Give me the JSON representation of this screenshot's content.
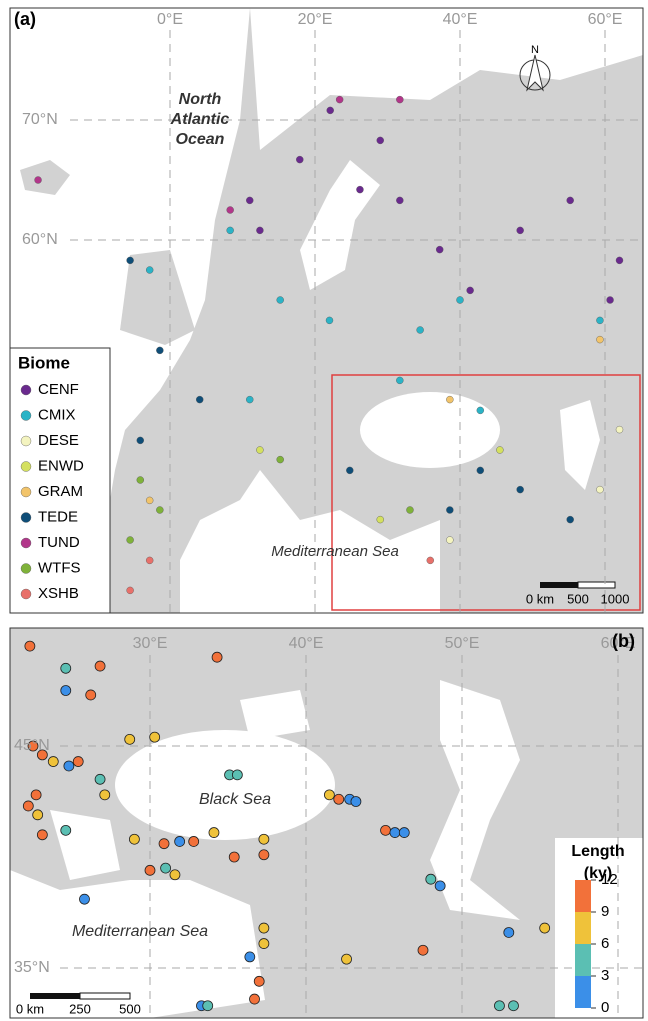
{
  "panel_a": {
    "label": "(a)",
    "lon_ticks": [
      {
        "value": 0,
        "label": "0°E"
      },
      {
        "value": 20,
        "label": "20°E"
      },
      {
        "value": 40,
        "label": "40°E"
      },
      {
        "value": 60,
        "label": "60°E"
      }
    ],
    "lat_ticks": [
      {
        "value": 70,
        "label": "70°N"
      },
      {
        "value": 60,
        "label": "60°N"
      }
    ],
    "ocean_label": [
      "North",
      "Atlantic",
      "Ocean"
    ],
    "sea_label": "Mediterranean Sea",
    "north": "N",
    "scale_labels": [
      "0 km",
      "500",
      "1000"
    ],
    "legend_title": "Biome",
    "biomes": [
      {
        "name": "CENF",
        "color": "#6a2a8e"
      },
      {
        "name": "CMIX",
        "color": "#2bb3c6"
      },
      {
        "name": "DESE",
        "color": "#f4f4c0"
      },
      {
        "name": "ENWD",
        "color": "#d4e060"
      },
      {
        "name": "GRAM",
        "color": "#f2c46a"
      },
      {
        "name": "TEDE",
        "color": "#0f4e78"
      },
      {
        "name": "TUND",
        "color": "#b2368a"
      },
      {
        "name": "WTFS",
        "color": "#7fb23a"
      },
      {
        "name": "XSHB",
        "color": "#e8706a"
      }
    ],
    "sites": [
      [
        22.1,
        70.8,
        "CENF"
      ],
      [
        29,
        68.3,
        "CENF"
      ],
      [
        31.7,
        63.3,
        "CENF"
      ],
      [
        26.2,
        64.2,
        "CENF"
      ],
      [
        11,
        63.3,
        "CENF"
      ],
      [
        12.4,
        60.8,
        "CENF"
      ],
      [
        37.2,
        59.2,
        "CENF"
      ],
      [
        41.4,
        55.8,
        "CENF"
      ],
      [
        62,
        58.3,
        "CENF"
      ],
      [
        60.7,
        55,
        "CENF"
      ],
      [
        55.2,
        63.3,
        "CENF"
      ],
      [
        48.3,
        60.8,
        "CENF"
      ],
      [
        17.9,
        66.7,
        "CENF"
      ],
      [
        40,
        55,
        "CMIX"
      ],
      [
        22,
        53.3,
        "CMIX"
      ],
      [
        11,
        46.7,
        "CMIX"
      ],
      [
        31.7,
        48.3,
        "CMIX"
      ],
      [
        42.8,
        45.8,
        "CMIX"
      ],
      [
        -2.8,
        57.5,
        "CMIX"
      ],
      [
        15.2,
        55,
        "CMIX"
      ],
      [
        8.3,
        60.8,
        "CMIX"
      ],
      [
        34.5,
        52.5,
        "CMIX"
      ],
      [
        59.3,
        53.3,
        "CMIX"
      ],
      [
        62,
        44.2,
        "DESE"
      ],
      [
        38.6,
        35,
        "DESE"
      ],
      [
        59.3,
        39.2,
        "DESE"
      ],
      [
        45.5,
        42.5,
        "ENWD"
      ],
      [
        12.4,
        42.5,
        "ENWD"
      ],
      [
        29,
        36.7,
        "ENWD"
      ],
      [
        59.3,
        51.7,
        "GRAM"
      ],
      [
        38.6,
        46.7,
        "GRAM"
      ],
      [
        -2.8,
        38.3,
        "GRAM"
      ],
      [
        4.1,
        46.7,
        "TEDE"
      ],
      [
        24.8,
        40.8,
        "TEDE"
      ],
      [
        38.6,
        37.5,
        "TEDE"
      ],
      [
        55.2,
        36.7,
        "TEDE"
      ],
      [
        -1.4,
        50.8,
        "TEDE"
      ],
      [
        -4.1,
        43.3,
        "TEDE"
      ],
      [
        42.8,
        40.8,
        "TEDE"
      ],
      [
        -5.5,
        58.3,
        "TEDE"
      ],
      [
        48.3,
        39.2,
        "TEDE"
      ],
      [
        23.4,
        71.7,
        "TUND"
      ],
      [
        31.7,
        71.7,
        "TUND"
      ],
      [
        -18.2,
        65,
        "TUND"
      ],
      [
        8.3,
        62.5,
        "TUND"
      ],
      [
        -4.1,
        40,
        "WTFS"
      ],
      [
        -1.4,
        37.5,
        "WTFS"
      ],
      [
        33.1,
        37.5,
        "WTFS"
      ],
      [
        15.2,
        41.7,
        "WTFS"
      ],
      [
        -5.5,
        35,
        "WTFS"
      ],
      [
        -5.5,
        30.8,
        "XSHB"
      ],
      [
        -2.8,
        33.3,
        "XSHB"
      ],
      [
        35.9,
        33.3,
        "XSHB"
      ]
    ]
  },
  "panel_b": {
    "label": "(b)",
    "lon_ticks": [
      {
        "value": 30,
        "label": "30°E"
      },
      {
        "value": 40,
        "label": "40°E"
      },
      {
        "value": 50,
        "label": "50°E"
      },
      {
        "value": 60,
        "label": "60°E"
      }
    ],
    "lat_ticks": [
      {
        "value": 45,
        "label": "45°N"
      },
      {
        "value": 35,
        "label": "35°N"
      }
    ],
    "sea_labels": [
      "Black Sea",
      "Mediterranean Sea"
    ],
    "scale_labels": [
      "0 km",
      "250",
      "500"
    ],
    "colorbar_title": [
      "Length",
      "(ky)"
    ],
    "colorbar_ticks": [
      0,
      3,
      6,
      9,
      12
    ],
    "colorbar_colors": [
      "#3b8fe8",
      "#5bbfb3",
      "#efc23a",
      "#f2713a"
    ],
    "sites": [
      [
        22.3,
        49.5,
        10
      ],
      [
        24.6,
        48.5,
        4
      ],
      [
        26.8,
        48.6,
        10
      ],
      [
        24.6,
        47.5,
        1
      ],
      [
        26.2,
        47.3,
        11
      ],
      [
        28.7,
        45.3,
        7
      ],
      [
        30.3,
        45.4,
        8
      ],
      [
        34.3,
        49,
        10
      ],
      [
        35.1,
        43.7,
        5
      ],
      [
        35.6,
        43.7,
        4
      ],
      [
        41.5,
        42.8,
        7
      ],
      [
        42.1,
        42.6,
        10
      ],
      [
        42.8,
        42.6,
        1
      ],
      [
        43.2,
        42.5,
        2
      ],
      [
        45.1,
        41.2,
        10
      ],
      [
        45.7,
        41.1,
        1
      ],
      [
        46.3,
        41.1,
        2
      ],
      [
        27.1,
        42.8,
        7
      ],
      [
        26.8,
        43.5,
        4
      ],
      [
        22.5,
        45,
        10
      ],
      [
        23.1,
        44.6,
        11
      ],
      [
        23.8,
        44.3,
        7
      ],
      [
        24.8,
        44.1,
        2
      ],
      [
        25.4,
        44.3,
        10
      ],
      [
        22.7,
        42.8,
        10
      ],
      [
        22.2,
        42.3,
        11
      ],
      [
        22.8,
        41.9,
        7
      ],
      [
        23.1,
        41,
        10
      ],
      [
        24.6,
        41.2,
        4
      ],
      [
        30.9,
        40.6,
        10
      ],
      [
        31.9,
        40.7,
        2
      ],
      [
        32.8,
        40.7,
        10
      ],
      [
        34.1,
        41.1,
        7
      ],
      [
        37.3,
        40.8,
        7
      ],
      [
        37.3,
        40.1,
        10
      ],
      [
        29,
        40.8,
        6
      ],
      [
        48,
        39,
        4
      ],
      [
        48.6,
        38.7,
        2
      ],
      [
        53,
        36.6,
        2
      ],
      [
        55.3,
        36.8,
        7
      ],
      [
        47.5,
        35.8,
        10
      ],
      [
        42.6,
        35.4,
        7
      ],
      [
        30,
        39.4,
        10
      ],
      [
        31,
        39.5,
        4
      ],
      [
        31.6,
        39.2,
        7
      ],
      [
        35.4,
        40,
        10
      ],
      [
        25.8,
        38.1,
        2
      ],
      [
        37.3,
        36.8,
        7
      ],
      [
        37.3,
        36.1,
        7
      ],
      [
        36.4,
        35.5,
        2
      ],
      [
        37,
        34.4,
        10
      ],
      [
        36.7,
        33.6,
        10
      ],
      [
        33.3,
        33.3,
        2
      ],
      [
        33.7,
        33.3,
        4
      ],
      [
        52.4,
        33.3,
        4
      ],
      [
        53.3,
        33.3,
        4
      ]
    ]
  }
}
